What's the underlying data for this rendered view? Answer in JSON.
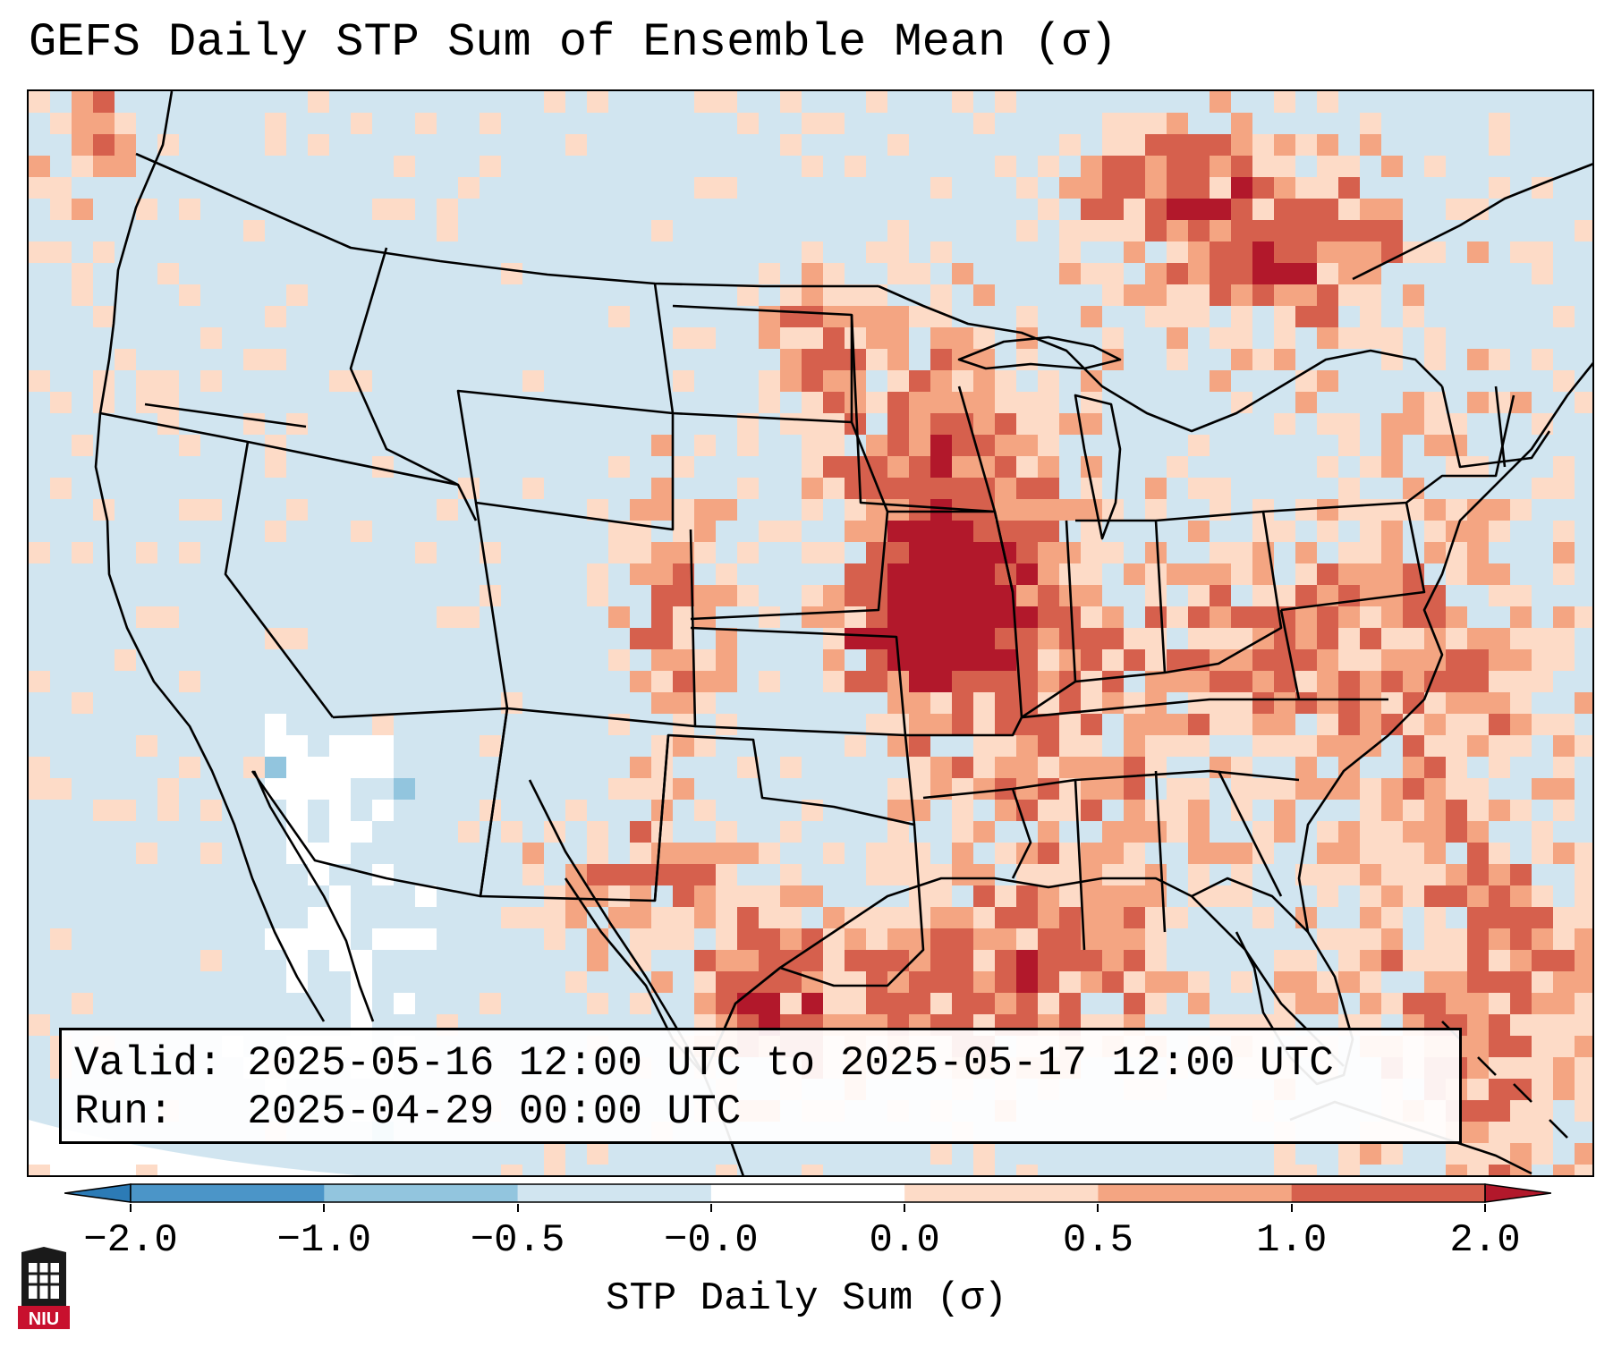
{
  "title": "GEFS Daily STP Sum of Ensemble Mean (σ)",
  "info": {
    "valid_label": "Valid:",
    "valid_value": "2025-05-16 12:00 UTC to 2025-05-17 12:00 UTC",
    "run_label": "Run:",
    "run_value": "2025-04-29 00:00 UTC"
  },
  "colorbar": {
    "label": "STP Daily Sum (σ)",
    "ticks": [
      "−2.0",
      "−1.0",
      "−0.5",
      "−0.0",
      "0.0",
      "0.5",
      "1.0",
      "2.0"
    ],
    "colors": [
      "#2c7bb6",
      "#4b95c8",
      "#92c5de",
      "#d1e5f0",
      "#ffffff",
      "#fddbc7",
      "#f4a582",
      "#d6604d",
      "#b2182b"
    ]
  },
  "logo": {
    "text": "NIU",
    "color": "#c8102e"
  },
  "map": {
    "projection": "Lambert conformal, CONUS",
    "field": "STP daily sum anomaly (σ)",
    "summary": {
      "max_anomaly_regions": [
        "Upper Midwest (IA/MN/WI)",
        "Missouri/Kansas border",
        "Ontario/Quebec",
        "Colorado Front Range",
        "Gulf of Mexico"
      ],
      "negative_anomaly_regions": [
        "Southern California",
        "Baja California"
      ]
    }
  }
}
